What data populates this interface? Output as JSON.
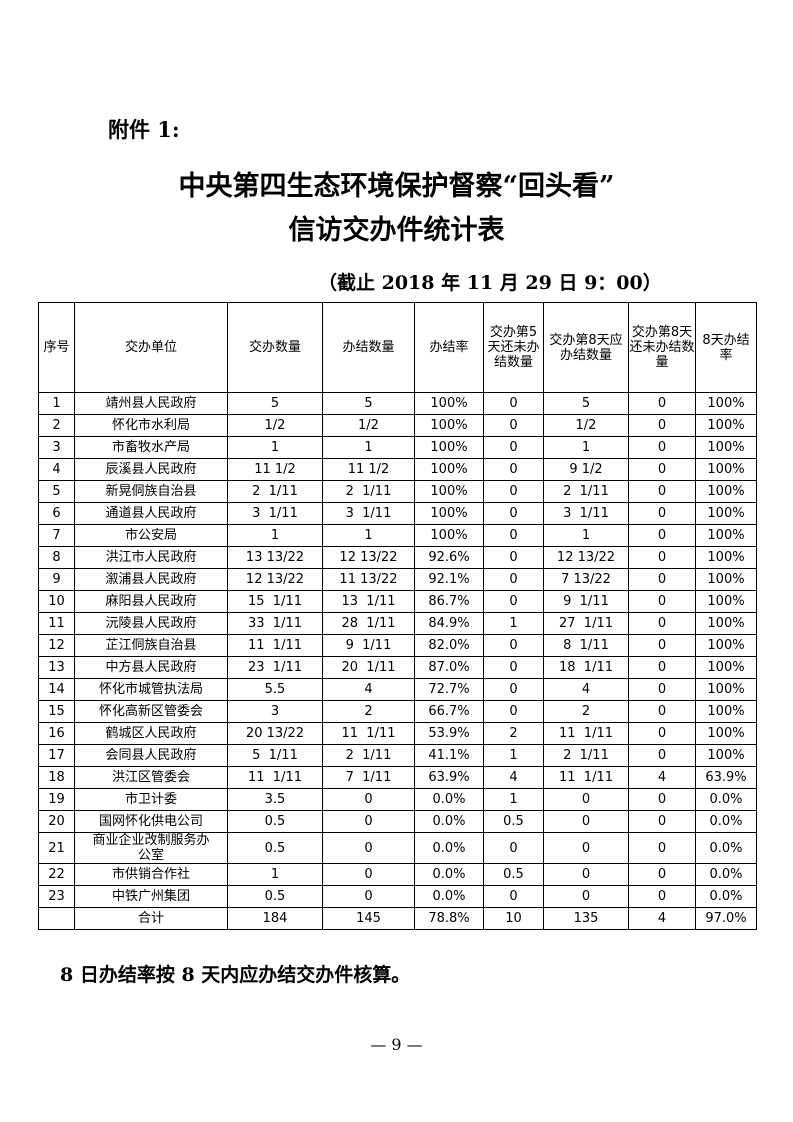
{
  "attachment": "附件 1:",
  "title_line1": "中央第四生态环境保护督察“回头看”",
  "title_line2": "信访交办件统计表",
  "cutoff": "（截止 2018 年 11 月 29 日 9：00）",
  "table": {
    "headers": [
      "序号",
      "交办单位",
      "交办数量",
      "办结数量",
      "办结率",
      "交办第5天还未办结数量",
      "交办第8天应办结数量",
      "交办第8天还未办结数量",
      "8天办结率"
    ],
    "rows": [
      [
        "1",
        "靖州县人民政府",
        "5",
        "5",
        "100%",
        "0",
        "5",
        "0",
        "100%"
      ],
      [
        "2",
        "怀化市水利局",
        "1/2",
        "1/2",
        "100%",
        "0",
        "1/2",
        "0",
        "100%"
      ],
      [
        "3",
        "市畜牧水产局",
        "1",
        "1",
        "100%",
        "0",
        "1",
        "0",
        "100%"
      ],
      [
        "4",
        "辰溪县人民政府",
        "11 1/2",
        "11 1/2",
        "100%",
        "0",
        "9 1/2",
        "0",
        "100%"
      ],
      [
        "5",
        "新晃侗族自治县",
        "2  1/11",
        "2  1/11",
        "100%",
        "0",
        "2  1/11",
        "0",
        "100%"
      ],
      [
        "6",
        "通道县人民政府",
        "3  1/11",
        "3  1/11",
        "100%",
        "0",
        "3  1/11",
        "0",
        "100%"
      ],
      [
        "7",
        "市公安局",
        "1",
        "1",
        "100%",
        "0",
        "1",
        "0",
        "100%"
      ],
      [
        "8",
        "洪江市人民政府",
        "13 13/22",
        "12 13/22",
        "92.6%",
        "0",
        "12 13/22",
        "0",
        "100%"
      ],
      [
        "9",
        "溆浦县人民政府",
        "12 13/22",
        "11 13/22",
        "92.1%",
        "0",
        "7 13/22",
        "0",
        "100%"
      ],
      [
        "10",
        "麻阳县人民政府",
        "15  1/11",
        "13  1/11",
        "86.7%",
        "0",
        "9  1/11",
        "0",
        "100%"
      ],
      [
        "11",
        "沅陵县人民政府",
        "33  1/11",
        "28  1/11",
        "84.9%",
        "1",
        "27  1/11",
        "0",
        "100%"
      ],
      [
        "12",
        "芷江侗族自治县",
        "11  1/11",
        "9  1/11",
        "82.0%",
        "0",
        "8  1/11",
        "0",
        "100%"
      ],
      [
        "13",
        "中方县人民政府",
        "23  1/11",
        "20  1/11",
        "87.0%",
        "0",
        "18  1/11",
        "0",
        "100%"
      ],
      [
        "14",
        "怀化市城管执法局",
        "5.5",
        "4",
        "72.7%",
        "0",
        "4",
        "0",
        "100%"
      ],
      [
        "15",
        "怀化高新区管委会",
        "3",
        "2",
        "66.7%",
        "0",
        "2",
        "0",
        "100%"
      ],
      [
        "16",
        "鹤城区人民政府",
        "20 13/22",
        "11  1/11",
        "53.9%",
        "2",
        "11  1/11",
        "0",
        "100%"
      ],
      [
        "17",
        "会同县人民政府",
        "5  1/11",
        "2  1/11",
        "41.1%",
        "1",
        "2  1/11",
        "0",
        "100%"
      ],
      [
        "18",
        "洪江区管委会",
        "11  1/11",
        "7  1/11",
        "63.9%",
        "4",
        "11  1/11",
        "4",
        "63.9%"
      ],
      [
        "19",
        "市卫计委",
        "3.5",
        "0",
        "0.0%",
        "1",
        "0",
        "0",
        "0.0%"
      ],
      [
        "20",
        "国网怀化供电公司",
        "0.5",
        "0",
        "0.0%",
        "0.5",
        "0",
        "0",
        "0.0%"
      ],
      [
        "21",
        "商业企业改制服务办公室",
        "0.5",
        "0",
        "0.0%",
        "0",
        "0",
        "0",
        "0.0%"
      ],
      [
        "22",
        "市供销合作社",
        "1",
        "0",
        "0.0%",
        "0.5",
        "0",
        "0",
        "0.0%"
      ],
      [
        "23",
        "中铁广州集团",
        "0.5",
        "0",
        "0.0%",
        "0",
        "0",
        "0",
        "0.0%"
      ],
      [
        "",
        "合计",
        "184",
        "145",
        "78.8%",
        "10",
        "135",
        "4",
        "97.0%"
      ]
    ]
  },
  "note": "8 日办结率按 8 天内应办结交办件核算。",
  "page_number": "— 9 —"
}
